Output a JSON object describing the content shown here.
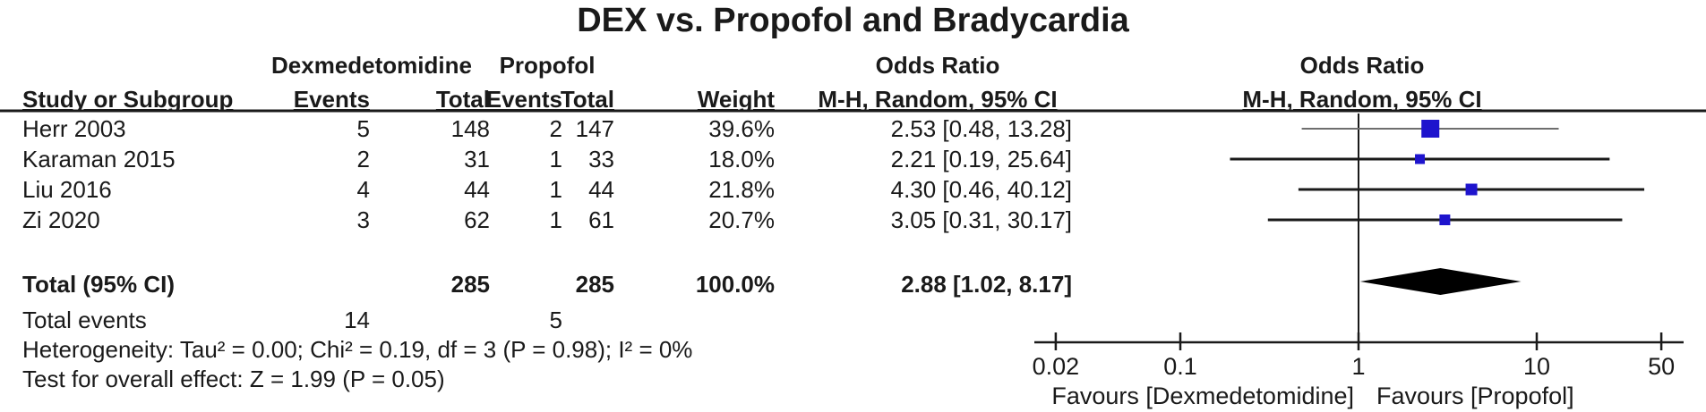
{
  "title": "DEX vs. Propofol and Bradycardia",
  "table": {
    "group_headers": {
      "dex": "Dexmedetomidine",
      "prop": "Propofol",
      "or_text": "Odds Ratio",
      "or_plot": "Odds Ratio"
    },
    "col_headers": {
      "study": "Study or Subgroup",
      "dex_events": "Events",
      "dex_total": "Total",
      "prop_events": "Events",
      "prop_total": "Total",
      "weight": "Weight",
      "mh_text": "M-H, Random, 95% CI",
      "mh_plot": "M-H, Random, 95% CI"
    },
    "rows": [
      {
        "study": "Herr 2003",
        "dex_events": "5",
        "dex_total": "148",
        "prop_events": "2",
        "prop_total": "147",
        "weight": "39.6%",
        "or_ci": "2.53 [0.48, 13.28]"
      },
      {
        "study": "Karaman 2015",
        "dex_events": "2",
        "dex_total": "31",
        "prop_events": "1",
        "prop_total": "33",
        "weight": "18.0%",
        "or_ci": "2.21 [0.19, 25.64]"
      },
      {
        "study": "Liu 2016",
        "dex_events": "4",
        "dex_total": "44",
        "prop_events": "1",
        "prop_total": "44",
        "weight": "21.8%",
        "or_ci": "4.30 [0.46, 40.12]"
      },
      {
        "study": "Zi 2020",
        "dex_events": "3",
        "dex_total": "62",
        "prop_events": "1",
        "prop_total": "61",
        "weight": "20.7%",
        "or_ci": "3.05 [0.31, 30.17]"
      }
    ],
    "total_row": {
      "label": "Total (95% CI)",
      "dex_total": "285",
      "prop_total": "285",
      "weight": "100.0%",
      "or_ci": "2.88 [1.02, 8.17]"
    },
    "total_events": {
      "label": "Total events",
      "dex": "14",
      "prop": "5"
    },
    "heterogeneity": "Heterogeneity: Tau² = 0.00; Chi² = 0.19, df = 3 (P = 0.98); I² = 0%",
    "overall_effect": "Test for overall effect: Z = 1.99 (P = 0.05)"
  },
  "chart_data": {
    "type": "forest",
    "title": "DEX vs. Propofol and Bradycardia",
    "effect_measure": "Odds Ratio",
    "method": "M-H, Random, 95% CI",
    "scale": "log",
    "axis_ticks": [
      "0.02",
      "0.1",
      "1",
      "10",
      "50"
    ],
    "axis_range": [
      0.02,
      50
    ],
    "studies": [
      {
        "name": "Herr 2003",
        "dex_events": 5,
        "dex_total": 148,
        "prop_events": 2,
        "prop_total": 147,
        "weight_pct": 39.6,
        "or": 2.53,
        "ci_low": 0.48,
        "ci_high": 13.28
      },
      {
        "name": "Karaman 2015",
        "dex_events": 2,
        "dex_total": 31,
        "prop_events": 1,
        "prop_total": 33,
        "weight_pct": 18.0,
        "or": 2.21,
        "ci_low": 0.19,
        "ci_high": 25.64
      },
      {
        "name": "Liu 2016",
        "dex_events": 4,
        "dex_total": 44,
        "prop_events": 1,
        "prop_total": 44,
        "weight_pct": 21.8,
        "or": 4.3,
        "ci_low": 0.46,
        "ci_high": 40.12
      },
      {
        "name": "Zi 2020",
        "dex_events": 3,
        "dex_total": 62,
        "prop_events": 1,
        "prop_total": 61,
        "weight_pct": 20.7,
        "or": 3.05,
        "ci_low": 0.31,
        "ci_high": 30.17
      }
    ],
    "total": {
      "or": 2.88,
      "ci_low": 1.02,
      "ci_high": 8.17,
      "dex_events": 14,
      "dex_total": 285,
      "prop_events": 5,
      "prop_total": 285,
      "weight_pct": 100.0
    },
    "heterogeneity": {
      "tau2": 0.0,
      "chi2": 0.19,
      "df": 3,
      "p": 0.98,
      "i2_pct": 0
    },
    "overall_effect": {
      "z": 1.99,
      "p": 0.05
    },
    "favours_left": "Favours [Dexmedetomidine]",
    "favours_right": "Favours [Propofol]",
    "marker_color": "#1e14cd",
    "line_color": "#1a1a1a",
    "diamond_color": "#000000"
  }
}
